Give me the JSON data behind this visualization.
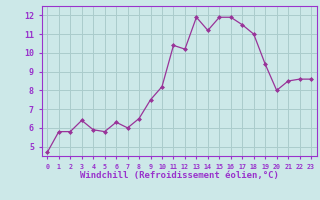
{
  "x": [
    0,
    1,
    2,
    3,
    4,
    5,
    6,
    7,
    8,
    9,
    10,
    11,
    12,
    13,
    14,
    15,
    16,
    17,
    18,
    19,
    20,
    21,
    22,
    23
  ],
  "y": [
    4.7,
    5.8,
    5.8,
    6.4,
    5.9,
    5.8,
    6.3,
    6.0,
    6.5,
    7.5,
    8.2,
    10.4,
    10.2,
    11.9,
    11.2,
    11.9,
    11.9,
    11.5,
    11.0,
    9.4,
    8.0,
    8.5,
    8.6,
    8.6
  ],
  "line_color": "#993399",
  "marker": "D",
  "marker_size": 2,
  "bg_color": "#cce8e8",
  "grid_color": "#aacccc",
  "xlabel": "Windchill (Refroidissement éolien,°C)",
  "xlabel_color": "#9933cc",
  "ylabel_ticks": [
    5,
    6,
    7,
    8,
    9,
    10,
    11,
    12
  ],
  "xlim": [
    -0.5,
    23.5
  ],
  "ylim": [
    4.5,
    12.5
  ],
  "tick_label_color": "#9933cc",
  "axis_color": "#9933cc",
  "spine_color": "#9933cc"
}
